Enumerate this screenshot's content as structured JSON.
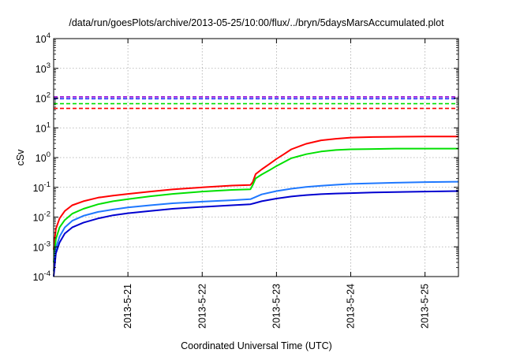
{
  "chart_data": {
    "type": "line",
    "title": "/data/run/goesPlots/archive/2013-05-25/10:00/flux/../bryn/5daysMarsAccumulated.plot",
    "xlabel": "Coordinated Universal Time (UTC)",
    "ylabel": "cSv",
    "y_scale": "log",
    "ylim": [
      0.0001,
      10000
    ],
    "xlim": [
      0,
      5.45
    ],
    "x_ticks": [
      {
        "x": 1,
        "label": "2013-5-21"
      },
      {
        "x": 2,
        "label": "2013-5-22"
      },
      {
        "x": 3,
        "label": "2013-5-23"
      },
      {
        "x": 4,
        "label": "2013-5-24"
      },
      {
        "x": 5,
        "label": "2013-5-25"
      }
    ],
    "y_ticks": [
      {
        "value": 0.0001,
        "base": "10",
        "exp": "-4"
      },
      {
        "value": 0.001,
        "base": "10",
        "exp": "-3"
      },
      {
        "value": 0.01,
        "base": "10",
        "exp": "-2"
      },
      {
        "value": 0.1,
        "base": "10",
        "exp": "-1"
      },
      {
        "value": 1,
        "base": "10",
        "exp": "0"
      },
      {
        "value": 10,
        "base": "10",
        "exp": "1"
      },
      {
        "value": 100,
        "base": "10",
        "exp": "2"
      },
      {
        "value": 1000,
        "base": "10",
        "exp": "3"
      },
      {
        "value": 10000,
        "base": "10",
        "exp": "4"
      }
    ],
    "grid": true,
    "legend": "none",
    "thresholds": [
      {
        "value": 110,
        "color": "#9400d3"
      },
      {
        "value": 95,
        "color": "#1e32ff"
      },
      {
        "value": 65,
        "color": "#00e000"
      },
      {
        "value": 45,
        "color": "#ff0000"
      }
    ],
    "series": [
      {
        "color": "#ff0000",
        "x": [
          0,
          0.03,
          0.08,
          0.15,
          0.25,
          0.4,
          0.6,
          0.8,
          1.0,
          1.3,
          1.6,
          2.0,
          2.4,
          2.65,
          2.68,
          2.72,
          2.8,
          2.9,
          3.0,
          3.1,
          3.2,
          3.4,
          3.6,
          3.8,
          4.0,
          4.3,
          4.6,
          5.0,
          5.45
        ],
        "y": [
          0.0008,
          0.004,
          0.009,
          0.016,
          0.025,
          0.034,
          0.045,
          0.053,
          0.06,
          0.072,
          0.085,
          0.1,
          0.115,
          0.12,
          0.15,
          0.28,
          0.4,
          0.6,
          0.9,
          1.3,
          1.9,
          2.9,
          3.8,
          4.3,
          4.7,
          4.9,
          5.0,
          5.1,
          5.1
        ]
      },
      {
        "color": "#00e000",
        "x": [
          0,
          0.03,
          0.08,
          0.15,
          0.25,
          0.4,
          0.6,
          0.8,
          1.0,
          1.3,
          1.6,
          2.0,
          2.4,
          2.65,
          2.68,
          2.72,
          2.8,
          2.9,
          3.0,
          3.1,
          3.2,
          3.4,
          3.6,
          3.8,
          4.0,
          4.3,
          4.6,
          5.0,
          5.45
        ],
        "y": [
          0.0003,
          0.0018,
          0.0045,
          0.008,
          0.013,
          0.019,
          0.027,
          0.034,
          0.04,
          0.05,
          0.06,
          0.072,
          0.082,
          0.086,
          0.12,
          0.2,
          0.27,
          0.37,
          0.52,
          0.7,
          0.95,
          1.3,
          1.6,
          1.8,
          1.9,
          1.95,
          2.0,
          2.0,
          2.0
        ]
      },
      {
        "color": "#1e78ff",
        "x": [
          0,
          0.03,
          0.08,
          0.15,
          0.25,
          0.4,
          0.6,
          0.8,
          1.0,
          1.3,
          1.6,
          2.0,
          2.4,
          2.65,
          2.7,
          2.8,
          3.0,
          3.2,
          3.4,
          3.6,
          3.8,
          4.0,
          4.3,
          4.6,
          5.0,
          5.45
        ],
        "y": [
          0.00015,
          0.0009,
          0.0022,
          0.0045,
          0.0075,
          0.011,
          0.015,
          0.018,
          0.021,
          0.025,
          0.029,
          0.033,
          0.037,
          0.04,
          0.045,
          0.058,
          0.075,
          0.09,
          0.103,
          0.113,
          0.122,
          0.13,
          0.137,
          0.143,
          0.15,
          0.155
        ]
      },
      {
        "color": "#0000d0",
        "x": [
          0,
          0.03,
          0.08,
          0.15,
          0.25,
          0.4,
          0.6,
          0.8,
          1.0,
          1.3,
          1.6,
          2.0,
          2.4,
          2.65,
          2.7,
          2.8,
          3.0,
          3.2,
          3.4,
          3.6,
          3.8,
          4.0,
          4.3,
          4.6,
          5.0,
          5.45
        ],
        "y": [
          0.0001,
          0.0006,
          0.0014,
          0.0028,
          0.0045,
          0.0065,
          0.009,
          0.0115,
          0.0135,
          0.016,
          0.019,
          0.022,
          0.025,
          0.027,
          0.029,
          0.034,
          0.042,
          0.049,
          0.055,
          0.059,
          0.062,
          0.064,
          0.067,
          0.069,
          0.072,
          0.075
        ]
      }
    ]
  }
}
